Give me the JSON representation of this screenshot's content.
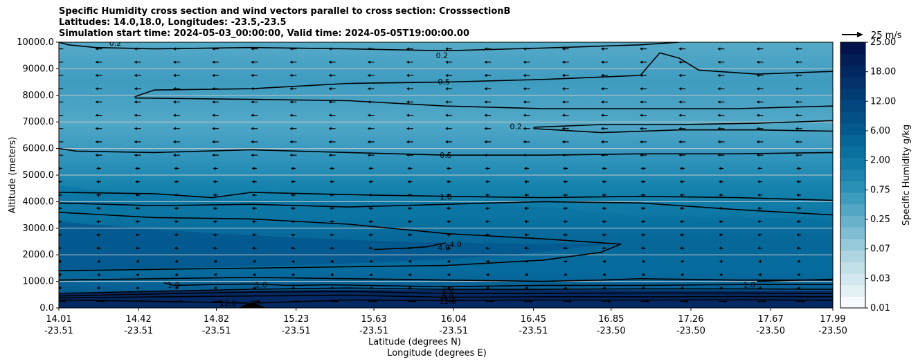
{
  "chart_data": {
    "type": "contour",
    "title_lines": [
      "Specific Humidity cross section and wind vectors parallel to cross section: CrosssectionB",
      "Latitudes: 14.0,18.0, Longitudes: -23.5,-23.5",
      "Simulation start time: 2024-05-03_00:00:00, Valid time: 2024-05-05T19:00:00.00"
    ],
    "ylabel": "Altitude (meters)",
    "xlabel_lat": "Latitude (degrees N)",
    "xlabel_lon": "Longitude (degrees E)",
    "ylim": [
      0,
      10000
    ],
    "yticks": [
      "0.0",
      "1000.0",
      "2000.0",
      "3000.0",
      "4000.0",
      "5000.0",
      "6000.0",
      "7000.0",
      "8000.0",
      "9000.0",
      "10000.0"
    ],
    "xticks": [
      {
        "lat": "14.01",
        "lon": "-23.51"
      },
      {
        "lat": "14.42",
        "lon": "-23.51"
      },
      {
        "lat": "14.82",
        "lon": "-23.51"
      },
      {
        "lat": "15.23",
        "lon": "-23.51"
      },
      {
        "lat": "15.63",
        "lon": "-23.51"
      },
      {
        "lat": "16.04",
        "lon": "-23.51"
      },
      {
        "lat": "16.45",
        "lon": "-23.51"
      },
      {
        "lat": "16.85",
        "lon": "-23.50"
      },
      {
        "lat": "17.26",
        "lon": "-23.50"
      },
      {
        "lat": "17.67",
        "lon": "-23.50"
      },
      {
        "lat": "17.99",
        "lon": "-23.50"
      }
    ],
    "grid": "horizontal",
    "colorbar": {
      "label": "Specific Humidity g/kg",
      "ticks": [
        "0.01",
        "0.03",
        "0.07",
        "0.25",
        "0.75",
        "2.00",
        "6.00",
        "12.00",
        "18.00",
        "25.00"
      ],
      "colors": [
        "#f6fafc",
        "#e3f0f4",
        "#d2e8ee",
        "#c1e0e8",
        "#aed5e1",
        "#97cad9",
        "#80bdd2",
        "#69b1cb",
        "#53a6c4",
        "#3d9bbd",
        "#2a90b6",
        "#1d85ae",
        "#127ba7",
        "#0a709f",
        "#066597",
        "#045a8f",
        "#034f86",
        "#03457d",
        "#033b73",
        "#033169",
        "#032760",
        "#031e56",
        "#03144d"
      ]
    },
    "quiver_key": "25 m/s",
    "contour_labels": [
      {
        "text": "0.2",
        "x": 15.98,
        "y": 9500
      },
      {
        "text": "0.5",
        "x": 15.99,
        "y": 8520
      },
      {
        "text": "0.2",
        "x": 16.36,
        "y": 6840
      },
      {
        "text": "0.5",
        "x": 16.0,
        "y": 5750
      },
      {
        "text": "1.0",
        "x": 16.0,
        "y": 4180
      },
      {
        "text": "4.0",
        "x": 16.05,
        "y": 2400
      },
      {
        "text": "4.0",
        "x": 15.99,
        "y": 2280
      },
      {
        "text": "1.0",
        "x": 14.6,
        "y": 870
      },
      {
        "text": "1.0",
        "x": 15.05,
        "y": 870
      },
      {
        "text": "1.0",
        "x": 17.56,
        "y": 870
      },
      {
        "text": "2.0",
        "x": 16.01,
        "y": 700
      },
      {
        "text": "4.0",
        "x": 16.01,
        "y": 500
      },
      {
        "text": "8.0",
        "x": 16.01,
        "y": 380
      },
      {
        "text": "12.0",
        "x": 16.01,
        "y": 260
      },
      {
        "text": "12.0",
        "x": 14.88,
        "y": 180
      },
      {
        "text": "0.2",
        "x": 14.3,
        "y": 9980
      }
    ],
    "contours": [
      {
        "level": "0.2",
        "points": [
          [
            14.01,
            10000
          ],
          [
            14.06,
            9900
          ],
          [
            14.2,
            9800
          ],
          [
            14.5,
            9750
          ],
          [
            15.0,
            9800
          ],
          [
            15.5,
            9750
          ],
          [
            16.0,
            9680
          ],
          [
            16.5,
            9780
          ],
          [
            17.0,
            9900
          ],
          [
            17.2,
            10000
          ]
        ]
      },
      {
        "level": "0.5",
        "points": [
          [
            14.4,
            7950
          ],
          [
            14.5,
            8200
          ],
          [
            15.0,
            8250
          ],
          [
            15.5,
            8450
          ],
          [
            16.0,
            8500
          ],
          [
            16.5,
            8600
          ],
          [
            17.0,
            8750
          ],
          [
            17.1,
            9600
          ],
          [
            17.2,
            9400
          ],
          [
            17.3,
            8950
          ],
          [
            17.6,
            8800
          ],
          [
            17.99,
            8900
          ]
        ]
      },
      {
        "level": "0.5",
        "points": [
          [
            14.4,
            7900
          ],
          [
            15.0,
            7850
          ],
          [
            15.5,
            7800
          ],
          [
            16.0,
            7600
          ],
          [
            16.5,
            7500
          ],
          [
            17.0,
            7500
          ],
          [
            17.5,
            7500
          ],
          [
            17.99,
            7600
          ]
        ]
      },
      {
        "level": "0.2",
        "points": [
          [
            16.45,
            6800
          ],
          [
            16.8,
            6900
          ],
          [
            17.2,
            6900
          ],
          [
            17.6,
            6950
          ],
          [
            17.99,
            7050
          ]
        ]
      },
      {
        "level": "0.2",
        "points": [
          [
            16.45,
            6750
          ],
          [
            16.8,
            6600
          ],
          [
            17.2,
            6700
          ],
          [
            17.6,
            6700
          ],
          [
            17.99,
            6650
          ]
        ]
      },
      {
        "level": "0.5",
        "points": [
          [
            14.01,
            6000
          ],
          [
            14.1,
            5900
          ],
          [
            14.5,
            5850
          ],
          [
            15.0,
            5950
          ],
          [
            15.5,
            5850
          ],
          [
            16.0,
            5750
          ],
          [
            16.5,
            5750
          ],
          [
            17.0,
            5800
          ],
          [
            17.5,
            5800
          ],
          [
            17.99,
            5850
          ]
        ]
      },
      {
        "level": "1.0",
        "points": [
          [
            14.01,
            4350
          ],
          [
            14.5,
            4300
          ],
          [
            14.8,
            4150
          ],
          [
            15.0,
            4350
          ],
          [
            15.3,
            4300
          ],
          [
            15.6,
            4250
          ],
          [
            16.0,
            4200
          ],
          [
            16.5,
            4150
          ],
          [
            17.0,
            4200
          ],
          [
            17.5,
            4150
          ],
          [
            17.99,
            4050
          ]
        ]
      },
      {
        "level": "1.0",
        "points": [
          [
            14.01,
            3950
          ],
          [
            14.5,
            3850
          ],
          [
            15.0,
            3900
          ],
          [
            15.5,
            3800
          ],
          [
            16.0,
            3900
          ],
          [
            16.5,
            4000
          ],
          [
            17.0,
            3950
          ],
          [
            17.5,
            3700
          ],
          [
            17.99,
            3500
          ]
        ]
      },
      {
        "level": "4.0",
        "points": [
          [
            14.01,
            3600
          ],
          [
            14.5,
            3400
          ],
          [
            15.0,
            3350
          ],
          [
            15.5,
            3150
          ],
          [
            16.0,
            2800
          ],
          [
            16.5,
            2600
          ],
          [
            16.9,
            2400
          ],
          [
            16.8,
            2100
          ],
          [
            16.5,
            1800
          ],
          [
            16.0,
            1600
          ],
          [
            15.5,
            1550
          ],
          [
            15.0,
            1500
          ],
          [
            14.5,
            1450
          ],
          [
            14.01,
            1400
          ]
        ]
      },
      {
        "level": "4.0",
        "points": [
          [
            15.63,
            2200
          ],
          [
            15.8,
            2250
          ],
          [
            15.9,
            2300
          ],
          [
            16.0,
            2450
          ]
        ]
      },
      {
        "level": "2.0",
        "points": [
          [
            14.01,
            1050
          ],
          [
            14.5,
            1100
          ],
          [
            15.0,
            1150
          ],
          [
            15.5,
            1100
          ],
          [
            16.0,
            1050
          ],
          [
            16.5,
            1000
          ],
          [
            16.8,
            1050
          ],
          [
            17.0,
            1100
          ],
          [
            17.5,
            1050
          ],
          [
            17.99,
            1050
          ]
        ]
      },
      {
        "level": "1.0",
        "points": [
          [
            14.55,
            950
          ],
          [
            14.6,
            850
          ],
          [
            14.8,
            880
          ],
          [
            15.0,
            900
          ],
          [
            15.2,
            850
          ],
          [
            15.4,
            870
          ],
          [
            16.0,
            800
          ],
          [
            16.5,
            850
          ],
          [
            17.0,
            850
          ],
          [
            17.5,
            880
          ],
          [
            17.99,
            880
          ]
        ]
      },
      {
        "level": "1.0",
        "points": [
          [
            17.6,
            1000
          ],
          [
            17.99,
            1080
          ]
        ]
      },
      {
        "level": "2.0",
        "points": [
          [
            14.01,
            550
          ],
          [
            15.0,
            700
          ],
          [
            15.5,
            750
          ],
          [
            16.0,
            700
          ],
          [
            16.5,
            700
          ],
          [
            17.0,
            720
          ],
          [
            17.5,
            720
          ],
          [
            17.99,
            700
          ]
        ]
      },
      {
        "level": "4.0",
        "points": [
          [
            14.01,
            450
          ],
          [
            15.0,
            600
          ],
          [
            15.5,
            620
          ],
          [
            16.0,
            550
          ],
          [
            16.5,
            550
          ],
          [
            17.0,
            560
          ],
          [
            17.5,
            560
          ],
          [
            17.99,
            540
          ]
        ]
      },
      {
        "level": "8.0",
        "points": [
          [
            14.01,
            380
          ],
          [
            15.0,
            450
          ],
          [
            15.5,
            480
          ],
          [
            16.0,
            400
          ],
          [
            16.5,
            420
          ],
          [
            17.0,
            420
          ],
          [
            17.5,
            430
          ],
          [
            17.99,
            420
          ]
        ]
      },
      {
        "level": "12.0",
        "points": [
          [
            14.01,
            300
          ],
          [
            14.5,
            250
          ],
          [
            15.0,
            180
          ],
          [
            15.5,
            300
          ],
          [
            16.0,
            280
          ],
          [
            16.5,
            300
          ],
          [
            17.0,
            300
          ],
          [
            17.5,
            310
          ],
          [
            17.99,
            290
          ]
        ]
      }
    ]
  }
}
